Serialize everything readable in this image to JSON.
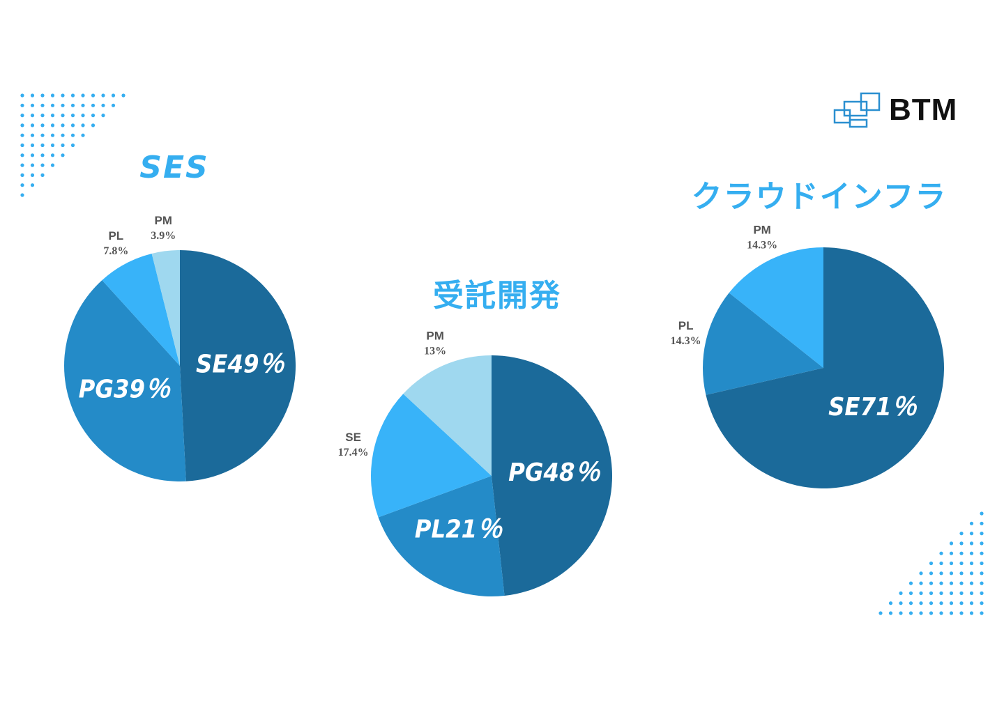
{
  "logo": {
    "text": "BTM"
  },
  "colors": {
    "accent": "#35aef0",
    "dark": "#1b6a9a",
    "mid": "#248bc8",
    "bright": "#38b3f9",
    "light": "#9fd8ef"
  },
  "chart_data": [
    {
      "type": "pie",
      "title": "SES",
      "slices": [
        {
          "name": "SE",
          "value": 49,
          "label": "SE49％",
          "style": "inside",
          "color": "#1b6a9a"
        },
        {
          "name": "PG",
          "value": 39,
          "label": "PG39％",
          "style": "inside",
          "color": "#248bc8"
        },
        {
          "name": "PL",
          "value": 7.8,
          "label": "7.8%",
          "style": "outside",
          "color": "#38b3f9"
        },
        {
          "name": "PM",
          "value": 3.9,
          "label": "3.9%",
          "style": "outside",
          "color": "#9fd8ef"
        }
      ]
    },
    {
      "type": "pie",
      "title": "受託開発",
      "slices": [
        {
          "name": "PG",
          "value": 48,
          "label": "PG48％",
          "style": "inside",
          "color": "#1b6a9a"
        },
        {
          "name": "PL",
          "value": 21,
          "label": "PL21％",
          "style": "inside",
          "color": "#248bc8"
        },
        {
          "name": "SE",
          "value": 17.4,
          "label": "17.4%",
          "style": "outside",
          "color": "#38b3f9"
        },
        {
          "name": "PM",
          "value": 13,
          "label": "13%",
          "style": "outside",
          "color": "#9fd8ef"
        }
      ]
    },
    {
      "type": "pie",
      "title": "クラウドインフラ",
      "slices": [
        {
          "name": "SE",
          "value": 71.4,
          "label": "SE71％",
          "style": "inside",
          "color": "#1b6a9a"
        },
        {
          "name": "PL",
          "value": 14.3,
          "label": "14.3%",
          "style": "outside",
          "color": "#248bc8"
        },
        {
          "name": "PM",
          "value": 14.3,
          "label": "14.3%",
          "style": "outside",
          "color": "#38b3f9"
        }
      ]
    }
  ]
}
